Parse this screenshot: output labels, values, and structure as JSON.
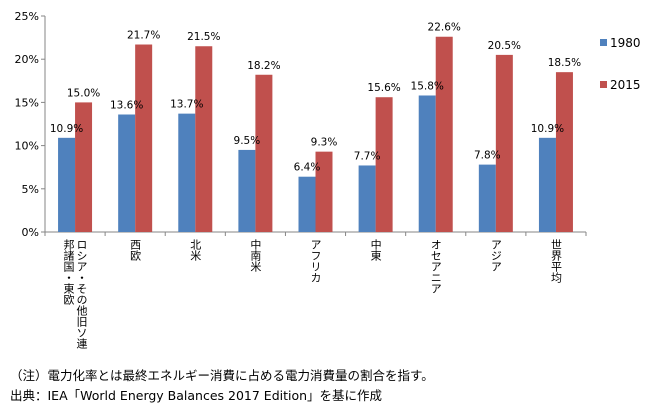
{
  "chart_data": {
    "type": "bar",
    "categories": [
      [
        "ロシア・その他旧ソ連",
        "邦諸国・東欧"
      ],
      [
        "西欧"
      ],
      [
        "北米"
      ],
      [
        "中南米"
      ],
      [
        "アフリカ"
      ],
      [
        "中東"
      ],
      [
        "オセアニア"
      ],
      [
        "アジア"
      ],
      [
        "世界平均"
      ]
    ],
    "series": [
      {
        "name": "1980",
        "color": "#4f81bd",
        "values": [
          10.9,
          13.6,
          13.7,
          9.5,
          6.4,
          7.7,
          15.8,
          7.8,
          10.9
        ]
      },
      {
        "name": "2015",
        "color": "#c0504d",
        "values": [
          15.0,
          21.7,
          21.5,
          18.2,
          9.3,
          15.6,
          22.6,
          20.5,
          18.5
        ]
      }
    ],
    "data_labels": [
      [
        "10.9%",
        "13.6%",
        "13.7%",
        "9.5%",
        "6.4%",
        "7.7%",
        "15.8%",
        "7.8%",
        "10.9%"
      ],
      [
        "15.0%",
        "21.7%",
        "21.5%",
        "18.2%",
        "9.3%",
        "15.6%",
        "22.6%",
        "20.5%",
        "18.5%"
      ]
    ],
    "yticks": [
      {
        "value": 0,
        "label": "0%"
      },
      {
        "value": 5,
        "label": "5%"
      },
      {
        "value": 10,
        "label": "10%"
      },
      {
        "value": 15,
        "label": "15%"
      },
      {
        "value": 20,
        "label": "20%"
      },
      {
        "value": 25,
        "label": "25%"
      }
    ],
    "ylim": [
      0,
      25
    ],
    "grid": false,
    "legend_position": "right"
  },
  "notes": {
    "note1": "（注）電力化率とは最終エネルギー消費に占める電力消費量の割合を指す。",
    "source": "出典：IEA「World Energy Balances 2017 Edition」を基に作成"
  }
}
